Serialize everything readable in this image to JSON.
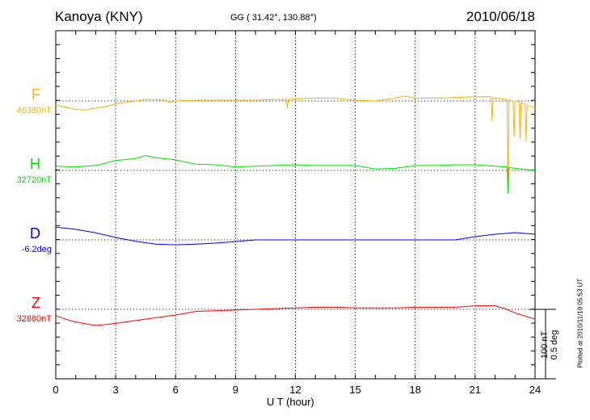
{
  "header": {
    "station": "Kanoya (KNY)",
    "coords": "GG ( 31.42°, 130.88°)",
    "date": "2010/06/18"
  },
  "scale_label": {
    "nt": "100 nT",
    "deg": "0.5 deg"
  },
  "plotted": "Plotted at 2010/11/19 05:53 UT",
  "chart_data": {
    "type": "line",
    "title": "Kanoya (KNY) 2010/06/18",
    "xlabel": "U T (hour)",
    "xlim": [
      0,
      24
    ],
    "xticks": [
      "0",
      "3",
      "6",
      "9",
      "12",
      "15",
      "18",
      "21",
      "24"
    ],
    "grid": true,
    "scale_bar": {
      "nT": 100,
      "deg": 0.5
    },
    "series": [
      {
        "name": "F",
        "baseline_label": "46380nT",
        "unit": "nT",
        "color": "#ffb000",
        "points": [
          [
            0,
            -6
          ],
          [
            0.5,
            -9
          ],
          [
            1,
            -12
          ],
          [
            1.5,
            -13
          ],
          [
            2,
            -10
          ],
          [
            2.5,
            -8
          ],
          [
            3,
            -4
          ],
          [
            3.5,
            -2
          ],
          [
            4,
            0
          ],
          [
            4.5,
            2
          ],
          [
            5,
            2
          ],
          [
            5.5,
            1
          ],
          [
            5.7,
            -2
          ],
          [
            6,
            0
          ],
          [
            7,
            1
          ],
          [
            8,
            1
          ],
          [
            9,
            1
          ],
          [
            10,
            1
          ],
          [
            11,
            2
          ],
          [
            11.55,
            2
          ],
          [
            11.6,
            -10
          ],
          [
            11.65,
            2
          ],
          [
            12,
            3
          ],
          [
            13,
            4
          ],
          [
            14,
            4
          ],
          [
            15,
            1
          ],
          [
            16,
            0
          ],
          [
            17,
            4
          ],
          [
            17.5,
            7
          ],
          [
            18,
            4
          ],
          [
            19,
            4
          ],
          [
            20,
            5
          ],
          [
            21,
            6
          ],
          [
            21.8,
            6
          ],
          [
            21.85,
            -29
          ],
          [
            21.9,
            5
          ],
          [
            22.3,
            3
          ],
          [
            22.6,
            2
          ],
          [
            22.65,
            -132
          ],
          [
            22.7,
            1
          ],
          [
            22.9,
            0
          ],
          [
            22.95,
            -51
          ],
          [
            23,
            0
          ],
          [
            23.2,
            -1
          ],
          [
            23.25,
            -55
          ],
          [
            23.3,
            -2
          ],
          [
            23.5,
            -5
          ],
          [
            23.55,
            -57
          ],
          [
            23.6,
            -6
          ],
          [
            24,
            -10
          ]
        ]
      },
      {
        "name": "H",
        "baseline_label": "32720nT",
        "unit": "nT",
        "color": "#00e000",
        "points": [
          [
            0,
            6
          ],
          [
            1,
            5
          ],
          [
            2,
            7
          ],
          [
            3,
            14
          ],
          [
            4,
            17
          ],
          [
            4.5,
            21
          ],
          [
            5,
            18
          ],
          [
            6,
            15
          ],
          [
            7,
            9
          ],
          [
            8,
            8
          ],
          [
            9,
            5
          ],
          [
            10,
            6
          ],
          [
            11,
            7
          ],
          [
            12,
            8
          ],
          [
            13,
            7
          ],
          [
            14,
            7
          ],
          [
            15,
            7
          ],
          [
            16,
            2
          ],
          [
            17,
            3
          ],
          [
            18,
            7
          ],
          [
            19,
            7
          ],
          [
            20,
            8
          ],
          [
            21,
            8
          ],
          [
            22,
            6
          ],
          [
            22.6,
            5
          ],
          [
            22.65,
            -33
          ],
          [
            22.7,
            4
          ],
          [
            23,
            3
          ],
          [
            24,
            0
          ]
        ]
      },
      {
        "name": "D",
        "baseline_label": "-6.2deg",
        "unit": "deg",
        "color": "#0000ff",
        "points": [
          [
            0,
            0.09
          ],
          [
            1,
            0.075
          ],
          [
            2,
            0.05
          ],
          [
            3,
            0.017
          ],
          [
            4,
            -0.01
          ],
          [
            5,
            -0.03
          ],
          [
            6,
            -0.035
          ],
          [
            7,
            -0.03
          ],
          [
            8,
            -0.023
          ],
          [
            9,
            -0.012
          ],
          [
            10,
            0
          ],
          [
            12,
            0
          ],
          [
            15,
            0
          ],
          [
            18,
            0
          ],
          [
            20,
            0
          ],
          [
            21,
            0.023
          ],
          [
            22,
            0.04
          ],
          [
            23,
            0.052
          ],
          [
            24,
            0.04
          ]
        ]
      },
      {
        "name": "Z",
        "baseline_label": "32880nT",
        "unit": "nT",
        "color": "#ff0000",
        "points": [
          [
            0,
            -9
          ],
          [
            0.5,
            -14
          ],
          [
            1,
            -18
          ],
          [
            2,
            -23
          ],
          [
            3,
            -20
          ],
          [
            4,
            -16
          ],
          [
            5,
            -12
          ],
          [
            6,
            -8
          ],
          [
            7,
            -3
          ],
          [
            8,
            -2
          ],
          [
            9,
            -1
          ],
          [
            10,
            0
          ],
          [
            11,
            1
          ],
          [
            12,
            2
          ],
          [
            13,
            3
          ],
          [
            14,
            3
          ],
          [
            15,
            2
          ],
          [
            16,
            2
          ],
          [
            17,
            2
          ],
          [
            18,
            3
          ],
          [
            19,
            3
          ],
          [
            20,
            3
          ],
          [
            21,
            5
          ],
          [
            22,
            5
          ],
          [
            22.5,
            1
          ],
          [
            23,
            -5
          ],
          [
            24,
            -14
          ]
        ]
      }
    ]
  }
}
